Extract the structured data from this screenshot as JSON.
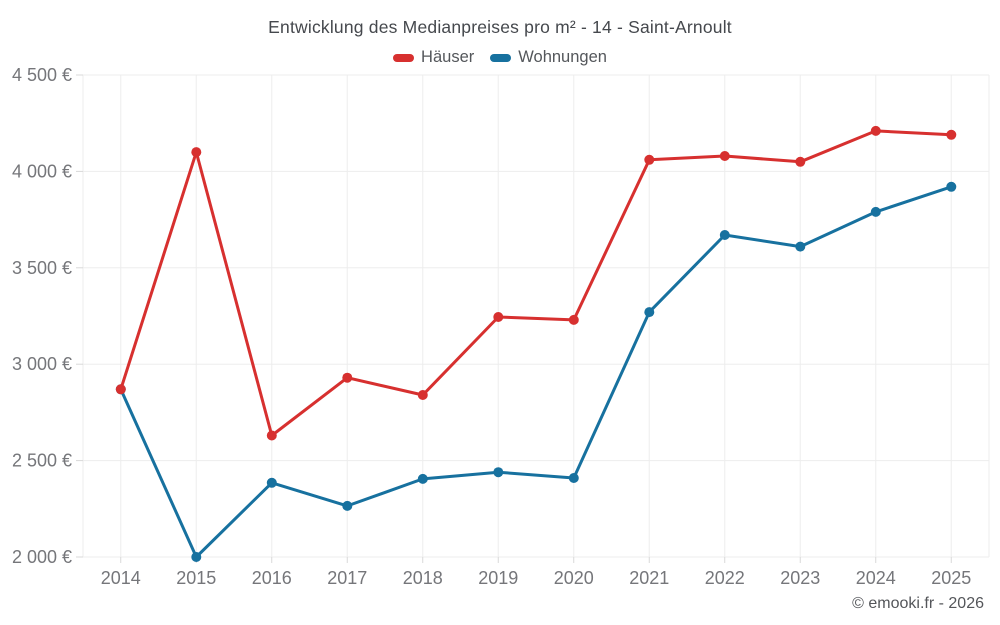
{
  "title": "Entwicklung des Medianpreises pro m² - 14 - Saint-Arnoult",
  "footer": "© emooki.fr - 2026",
  "colors": {
    "haeuser": "#d7302f",
    "wohnungen": "#17719f",
    "grid": "#ededed",
    "tick": "#d8d8d8",
    "axis_text": "#75767a",
    "title_text": "#45484d",
    "legend_text": "#54575b",
    "footer_text": "#54565a",
    "background": "#ffffff"
  },
  "chart_data": {
    "type": "line",
    "title": "Entwicklung des Medianpreises pro m² - 14 - Saint-Arnoult",
    "x": [
      "2014",
      "2015",
      "2016",
      "2017",
      "2018",
      "2019",
      "2020",
      "2021",
      "2022",
      "2023",
      "2024",
      "2025"
    ],
    "series": [
      {
        "name": "Häuser",
        "color": "#d7302f",
        "values": [
          2870,
          4100,
          2630,
          2930,
          2840,
          3245,
          3230,
          4060,
          4080,
          4050,
          4210,
          4190
        ]
      },
      {
        "name": "Wohnungen",
        "color": "#17719f",
        "values": [
          2870,
          2000,
          2385,
          2265,
          2405,
          2440,
          2410,
          3270,
          3670,
          3610,
          3790,
          3920
        ]
      }
    ],
    "xlabel": "",
    "ylabel": "",
    "ylim": [
      2000,
      4500
    ],
    "y_ticks": [
      2000,
      2500,
      3000,
      3500,
      4000,
      4500
    ],
    "y_tick_suffix": " €",
    "grid": true,
    "legend_position": "top",
    "marker_radius": 5,
    "line_width": 3
  }
}
